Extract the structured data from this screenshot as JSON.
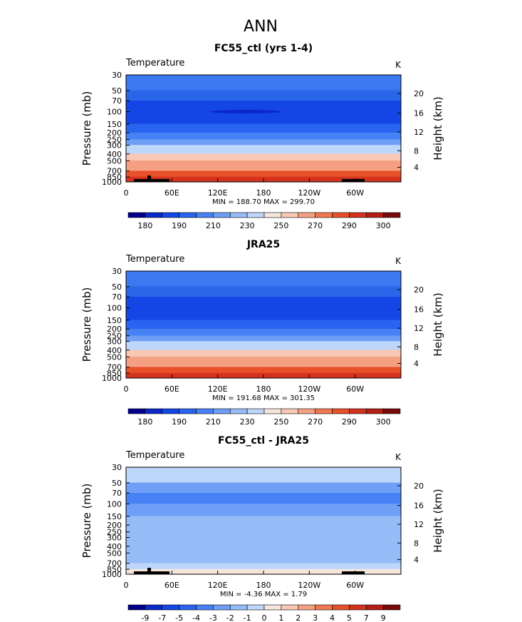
{
  "page_title": "ANN",
  "chart_data": [
    {
      "type": "heatmap",
      "title": "FC55_ctl (yrs 1-4)",
      "variable": "Temperature",
      "units": "K",
      "ylabel": "Pressure (mb)",
      "y2label": "Height (km)",
      "yticks": [
        "30",
        "50",
        "70",
        "100",
        "150",
        "200",
        "250",
        "300",
        "400",
        "500",
        "700",
        "850",
        "1000"
      ],
      "y2ticks": [
        "20",
        "16",
        "12",
        "8",
        "4"
      ],
      "xticks": [
        "0",
        "60E",
        "120E",
        "180",
        "120W",
        "60W"
      ],
      "stats": "MIN = 188.70  MAX = 299.70",
      "colorbar": {
        "labels": [
          "180",
          "190",
          "210",
          "230",
          "250",
          "270",
          "290",
          "300"
        ],
        "colors": [
          "#00008c",
          "#0a28c8",
          "#1446e6",
          "#2864f0",
          "#4682f5",
          "#6e9ef5",
          "#96bcf8",
          "#bed6fa",
          "#f5e6dc",
          "#f8c8b4",
          "#f5a082",
          "#f07850",
          "#e8502a",
          "#d2321e",
          "#b41e14",
          "#780a0a"
        ]
      },
      "bands": [
        {
          "from": "30",
          "to": "50",
          "color": "#3c78f0"
        },
        {
          "from": "50",
          "to": "70",
          "color": "#2a66ea"
        },
        {
          "from": "70",
          "to": "100",
          "color": "#1446e6"
        },
        {
          "from": "100",
          "to": "150",
          "color": "#1446e6"
        },
        {
          "from": "150",
          "to": "200",
          "color": "#2864f0"
        },
        {
          "from": "200",
          "to": "250",
          "color": "#4682f5"
        },
        {
          "from": "250",
          "to": "300",
          "color": "#6e9ef5"
        },
        {
          "from": "300",
          "to": "400",
          "color": "#bed6fa"
        },
        {
          "from": "400",
          "to": "500",
          "color": "#f8c8b4"
        },
        {
          "from": "500",
          "to": "700",
          "color": "#f5a082"
        },
        {
          "from": "700",
          "to": "850",
          "color": "#e8502a"
        },
        {
          "from": "850",
          "to": "1000",
          "color": "#d2321e"
        }
      ]
    },
    {
      "type": "heatmap",
      "title": "JRA25",
      "variable": "Temperature",
      "units": "K",
      "ylabel": "Pressure (mb)",
      "y2label": "Height (km)",
      "yticks": [
        "30",
        "50",
        "70",
        "100",
        "150",
        "200",
        "250",
        "300",
        "400",
        "500",
        "700",
        "850",
        "1000"
      ],
      "y2ticks": [
        "20",
        "16",
        "12",
        "8",
        "4"
      ],
      "xticks": [
        "0",
        "60E",
        "120E",
        "180",
        "120W",
        "60W"
      ],
      "stats": "MIN = 191.68  MAX = 301.35",
      "colorbar": {
        "labels": [
          "180",
          "190",
          "210",
          "230",
          "250",
          "270",
          "290",
          "300"
        ],
        "colors": [
          "#00008c",
          "#0a28c8",
          "#1446e6",
          "#2864f0",
          "#4682f5",
          "#6e9ef5",
          "#96bcf8",
          "#bed6fa",
          "#f5e6dc",
          "#f8c8b4",
          "#f5a082",
          "#f07850",
          "#e8502a",
          "#d2321e",
          "#b41e14",
          "#780a0a"
        ]
      },
      "bands": [
        {
          "from": "30",
          "to": "50",
          "color": "#3c78f0"
        },
        {
          "from": "50",
          "to": "70",
          "color": "#2a66ea"
        },
        {
          "from": "70",
          "to": "100",
          "color": "#1446e6"
        },
        {
          "from": "100",
          "to": "150",
          "color": "#1446e6"
        },
        {
          "from": "150",
          "to": "200",
          "color": "#2864f0"
        },
        {
          "from": "200",
          "to": "250",
          "color": "#4682f5"
        },
        {
          "from": "250",
          "to": "300",
          "color": "#6e9ef5"
        },
        {
          "from": "300",
          "to": "400",
          "color": "#bed6fa"
        },
        {
          "from": "400",
          "to": "500",
          "color": "#f8c8b4"
        },
        {
          "from": "500",
          "to": "700",
          "color": "#f5a082"
        },
        {
          "from": "700",
          "to": "850",
          "color": "#e8502a"
        },
        {
          "from": "850",
          "to": "1000",
          "color": "#d2321e"
        }
      ]
    },
    {
      "type": "heatmap",
      "title": "FC55_ctl - JRA25",
      "variable": "Temperature",
      "units": "K",
      "ylabel": "Pressure (mb)",
      "y2label": "Height (km)",
      "yticks": [
        "30",
        "50",
        "70",
        "100",
        "150",
        "200",
        "250",
        "300",
        "400",
        "500",
        "700",
        "850",
        "1000"
      ],
      "y2ticks": [
        "20",
        "16",
        "12",
        "8",
        "4"
      ],
      "xticks": [
        "0",
        "60E",
        "120E",
        "180",
        "120W",
        "60W"
      ],
      "stats": "MIN =   -4.36  MAX =    1.79",
      "colorbar": {
        "labels": [
          "-9",
          "-7",
          "-5",
          "-4",
          "-3",
          "-2",
          "-1",
          "0",
          "1",
          "2",
          "3",
          "4",
          "5",
          "7",
          "9"
        ],
        "colors": [
          "#00008c",
          "#0a28c8",
          "#1446e6",
          "#2864f0",
          "#4682f5",
          "#6e9ef5",
          "#96bcf8",
          "#bed6fa",
          "#f5e6dc",
          "#f8c8b4",
          "#f5a082",
          "#f07850",
          "#e8502a",
          "#d2321e",
          "#b41e14",
          "#780a0a"
        ]
      },
      "bands": [
        {
          "from": "30",
          "to": "50",
          "color": "#bed6fa"
        },
        {
          "from": "50",
          "to": "70",
          "color": "#6e9ef5"
        },
        {
          "from": "70",
          "to": "100",
          "color": "#4682f5"
        },
        {
          "from": "100",
          "to": "150",
          "color": "#6e9ef5"
        },
        {
          "from": "150",
          "to": "200",
          "color": "#96bcf8"
        },
        {
          "from": "200",
          "to": "250",
          "color": "#96bcf8"
        },
        {
          "from": "250",
          "to": "300",
          "color": "#96bcf8"
        },
        {
          "from": "300",
          "to": "400",
          "color": "#96bcf8"
        },
        {
          "from": "400",
          "to": "500",
          "color": "#96bcf8"
        },
        {
          "from": "500",
          "to": "700",
          "color": "#96bcf8"
        },
        {
          "from": "700",
          "to": "850",
          "color": "#bed6fa"
        },
        {
          "from": "850",
          "to": "1000",
          "color": "#f5e6dc"
        }
      ]
    }
  ]
}
